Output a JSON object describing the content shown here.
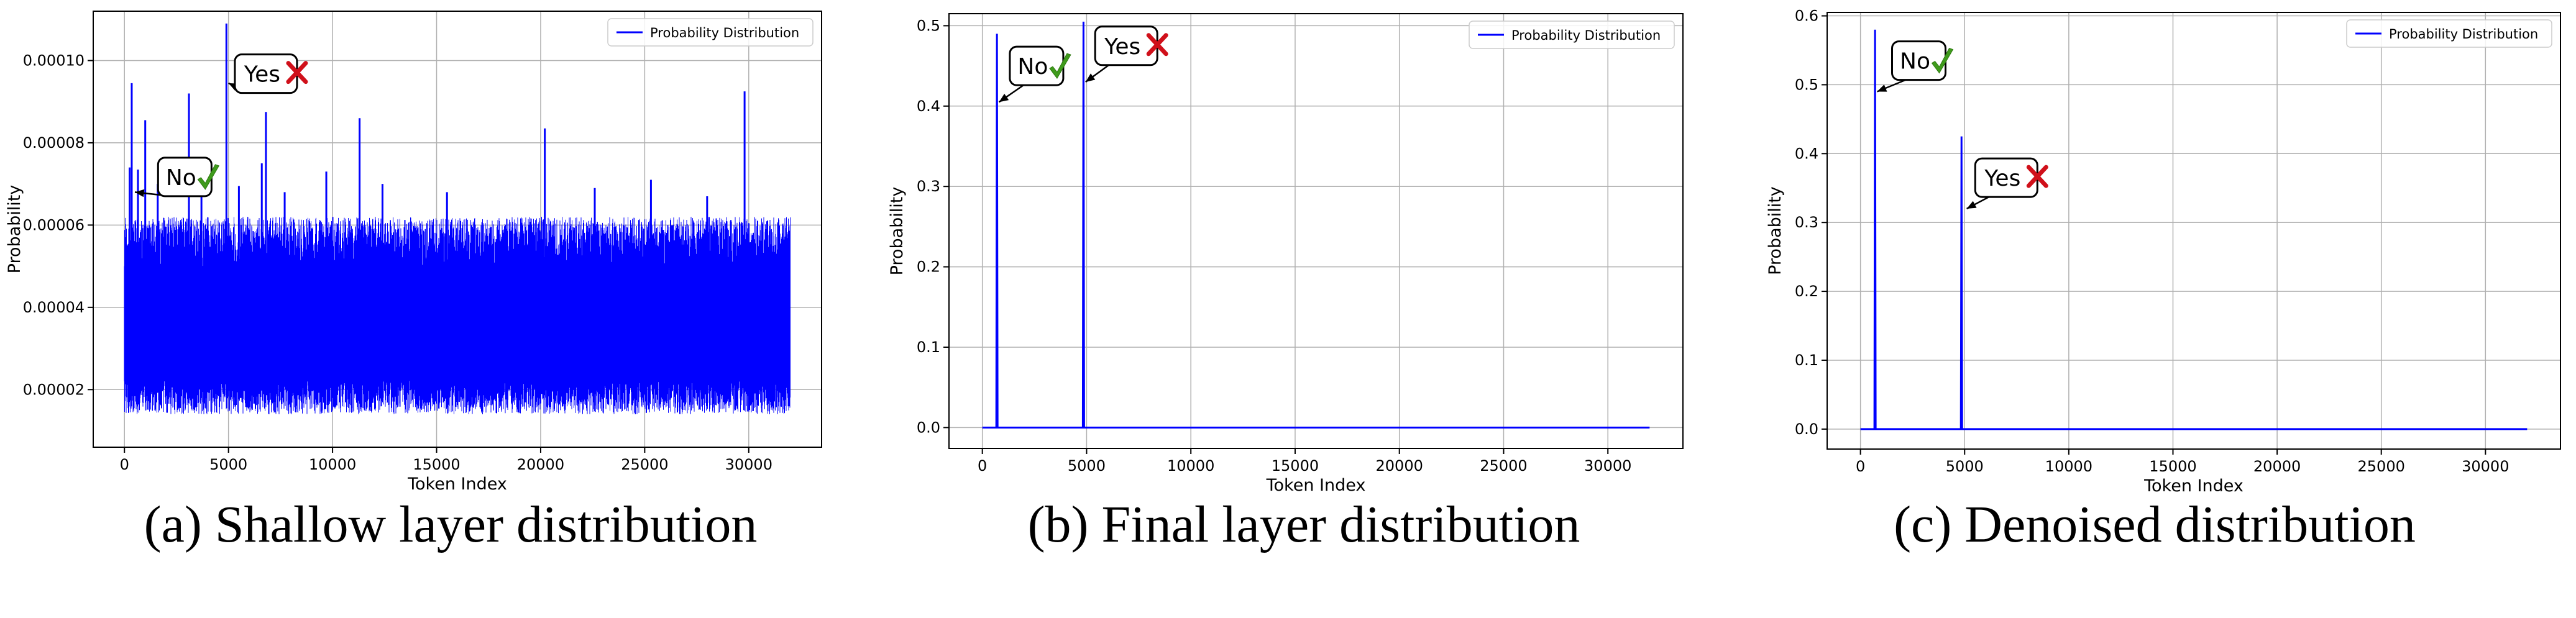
{
  "colors": {
    "line": "#0000ff",
    "check": "#3f9b1c",
    "cross": "#d0101a",
    "grid": "#b0b0b0"
  },
  "charts": [
    {
      "caption": "(a) Shallow layer distribution",
      "chart_data": {
        "type": "line",
        "xlabel": "Token Index",
        "ylabel": "Probability",
        "xlim": [
          -1500,
          33500
        ],
        "ylim": [
          6e-06,
          0.000112
        ],
        "xticks": [
          0,
          5000,
          10000,
          15000,
          20000,
          25000,
          30000
        ],
        "yticks": [
          2e-05,
          4e-05,
          6e-05,
          8e-05,
          0.0001
        ],
        "ytick_labels": [
          "0.00002",
          "0.00004",
          "0.00006",
          "0.00008",
          "0.00010"
        ],
        "grid": true,
        "legend": {
          "position": "top-right",
          "entries": [
            "Probability Distribution"
          ]
        },
        "series": [
          {
            "name": "Probability Distribution",
            "kind": "noise",
            "n_points": 32000,
            "baseline": 3.25e-05,
            "band_low": 1.4e-05,
            "band_high": 6.2e-05,
            "peaks": [
              {
                "x": 250,
                "y": 7.4e-05
              },
              {
                "x": 650,
                "y": 7.35e-05
              },
              {
                "x": 350,
                "y": 9.45e-05
              },
              {
                "x": 1000,
                "y": 8.55e-05
              },
              {
                "x": 1600,
                "y": 7e-05
              },
              {
                "x": 3100,
                "y": 9.2e-05
              },
              {
                "x": 3700,
                "y": 7.2e-05
              },
              {
                "x": 4900,
                "y": 0.000109
              },
              {
                "x": 5500,
                "y": 6.95e-05
              },
              {
                "x": 6600,
                "y": 7.5e-05
              },
              {
                "x": 6800,
                "y": 8.75e-05
              },
              {
                "x": 7700,
                "y": 6.8e-05
              },
              {
                "x": 9700,
                "y": 7.3e-05
              },
              {
                "x": 11300,
                "y": 8.6e-05
              },
              {
                "x": 12400,
                "y": 7e-05
              },
              {
                "x": 15500,
                "y": 6.8e-05
              },
              {
                "x": 20200,
                "y": 8.35e-05
              },
              {
                "x": 22600,
                "y": 6.9e-05
              },
              {
                "x": 25300,
                "y": 7.1e-05
              },
              {
                "x": 28000,
                "y": 6.7e-05
              },
              {
                "x": 29800,
                "y": 9.25e-05
              }
            ]
          }
        ],
        "annotations": [
          {
            "text": "Yes",
            "mark": "cross",
            "point": [
              5000,
              9.45e-05
            ],
            "box": [
              6800,
              9.68e-05
            ]
          },
          {
            "text": "No",
            "mark": "check",
            "point": [
              500,
              6.8e-05
            ],
            "box": [
              2900,
              7.17e-05
            ]
          }
        ]
      }
    },
    {
      "caption": "(b) Final layer distribution",
      "chart_data": {
        "type": "line",
        "xlabel": "Token Index",
        "ylabel": "Probability",
        "xlim": [
          -1600,
          33600
        ],
        "ylim": [
          -0.026,
          0.515
        ],
        "xticks": [
          0,
          5000,
          10000,
          15000,
          20000,
          25000,
          30000
        ],
        "yticks": [
          0.0,
          0.1,
          0.2,
          0.3,
          0.4,
          0.5
        ],
        "ytick_labels": [
          "0.0",
          "0.1",
          "0.2",
          "0.3",
          "0.4",
          "0.5"
        ],
        "grid": true,
        "legend": {
          "position": "top-right",
          "entries": [
            "Probability Distribution"
          ]
        },
        "series": [
          {
            "name": "Probability Distribution",
            "kind": "spikes",
            "x_range": [
              0,
              32000
            ],
            "baseline": 0.0,
            "spikes": [
              {
                "x": 700,
                "y": 0.49
              },
              {
                "x": 4850,
                "y": 0.505
              }
            ]
          }
        ],
        "annotations": [
          {
            "text": "No",
            "mark": "check",
            "point": [
              800,
              0.405
            ],
            "box": [
              2600,
              0.45
            ]
          },
          {
            "text": "Yes",
            "mark": "cross",
            "point": [
              4950,
              0.43
            ],
            "box": [
              6900,
              0.475
            ]
          }
        ]
      }
    },
    {
      "caption": "(c) Denoised distribution",
      "chart_data": {
        "type": "line",
        "xlabel": "Token Index",
        "ylabel": "Probability",
        "xlim": [
          -1600,
          33600
        ],
        "ylim": [
          -0.029,
          0.605
        ],
        "xticks": [
          0,
          5000,
          10000,
          15000,
          20000,
          25000,
          30000
        ],
        "yticks": [
          0.0,
          0.1,
          0.2,
          0.3,
          0.4,
          0.5,
          0.6
        ],
        "ytick_labels": [
          "0.0",
          "0.1",
          "0.2",
          "0.3",
          "0.4",
          "0.5",
          "0.6"
        ],
        "grid": true,
        "legend": {
          "position": "top-right",
          "entries": [
            "Probability Distribution"
          ]
        },
        "series": [
          {
            "name": "Probability Distribution",
            "kind": "spikes",
            "x_range": [
              0,
              32000
            ],
            "baseline": 0.0,
            "spikes": [
              {
                "x": 700,
                "y": 0.58
              },
              {
                "x": 4850,
                "y": 0.425
              }
            ]
          }
        ],
        "annotations": [
          {
            "text": "No",
            "mark": "check",
            "point": [
              800,
              0.49
            ],
            "box": [
              2800,
              0.535
            ]
          },
          {
            "text": "Yes",
            "mark": "cross",
            "point": [
              5100,
              0.32
            ],
            "box": [
              7000,
              0.365
            ]
          }
        ]
      }
    }
  ]
}
